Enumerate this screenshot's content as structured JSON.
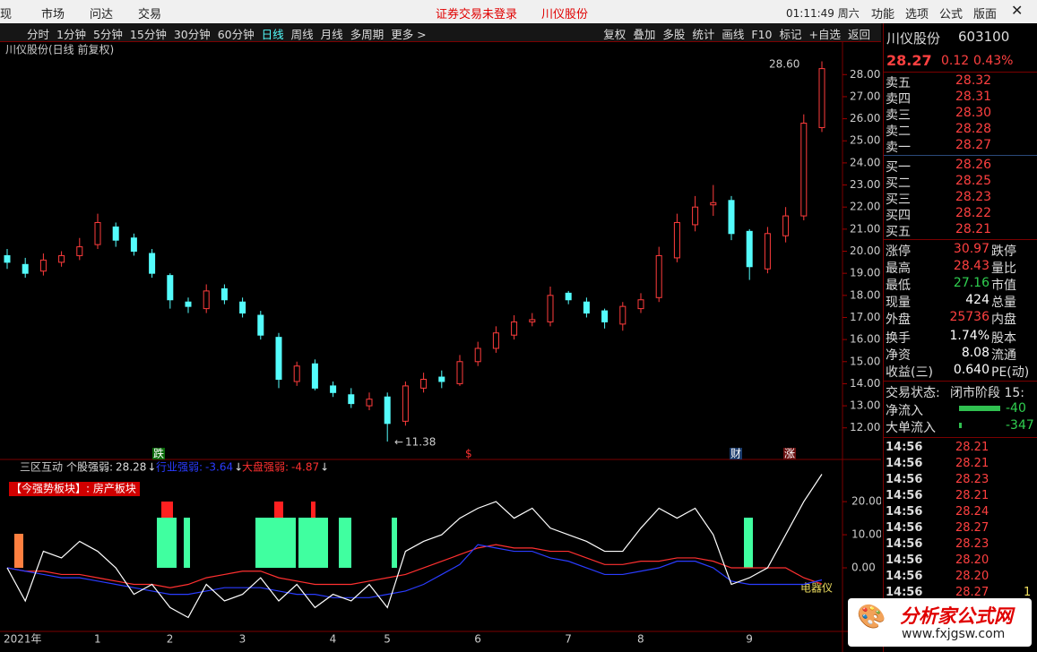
{
  "menu": {
    "items": [
      "现",
      "市场",
      "问达",
      "交易"
    ],
    "notice": "证券交易未登录",
    "stock": "川仪股份",
    "clock": "01:11:49 周六",
    "right_items": [
      "功能",
      "选项",
      "公式",
      "版面"
    ]
  },
  "toolbar": {
    "periods": [
      "分时",
      "1分钟",
      "5分钟",
      "15分钟",
      "30分钟",
      "60分钟",
      "日线",
      "周线",
      "月线",
      "多周期",
      "更多 >"
    ],
    "tools": [
      "复权",
      "叠加",
      "多股",
      "统计",
      "画线",
      "F10",
      "标记",
      "+自选",
      "返回"
    ]
  },
  "chart_data": [
    {
      "type": "candlestick",
      "title": "川仪股份(日线 前复权)",
      "dates": [
        "2021年",
        null,
        null,
        null,
        null,
        "1",
        null,
        null,
        null,
        "2",
        null,
        null,
        null,
        "3",
        null,
        null,
        null,
        null,
        "4",
        null,
        null,
        "5",
        null,
        null,
        null,
        null,
        "6",
        null,
        null,
        null,
        null,
        "7",
        null,
        null,
        null,
        "8",
        null,
        null,
        null,
        null,
        null,
        "9",
        null,
        null,
        null,
        null
      ],
      "open": [
        19.8,
        19.4,
        19.1,
        19.5,
        19.8,
        20.3,
        21.1,
        20.6,
        19.9,
        18.9,
        17.7,
        17.4,
        18.3,
        17.7,
        17.1,
        16.1,
        14.1,
        14.9,
        13.9,
        13.5,
        13.0,
        13.4,
        12.3,
        13.8,
        14.3,
        14.0,
        15.0,
        15.6,
        16.2,
        16.8,
        16.8,
        18.1,
        17.7,
        17.3,
        16.7,
        17.4,
        17.9,
        19.7,
        21.2,
        22.1,
        22.3,
        20.9,
        19.2,
        20.7,
        21.6,
        25.6
      ],
      "high": [
        20.1,
        19.7,
        19.9,
        20.0,
        20.6,
        21.7,
        21.3,
        20.8,
        20.1,
        19.0,
        17.9,
        18.5,
        18.5,
        17.9,
        17.3,
        16.3,
        15.0,
        15.1,
        14.1,
        13.8,
        13.6,
        13.6,
        14.1,
        14.5,
        14.6,
        15.3,
        15.9,
        16.6,
        17.1,
        17.2,
        18.4,
        18.2,
        17.9,
        17.4,
        17.7,
        18.1,
        20.2,
        21.7,
        22.5,
        23.0,
        22.5,
        21.0,
        21.1,
        22.0,
        26.2,
        28.6
      ],
      "low": [
        19.2,
        18.8,
        18.9,
        19.3,
        19.6,
        20.1,
        20.2,
        19.8,
        18.8,
        17.4,
        17.2,
        17.2,
        17.6,
        17.0,
        16.0,
        13.8,
        13.9,
        13.7,
        13.4,
        12.9,
        12.8,
        11.38,
        12.1,
        13.6,
        13.8,
        13.9,
        14.8,
        15.4,
        16.0,
        16.6,
        16.6,
        17.6,
        17.0,
        16.5,
        16.4,
        17.2,
        17.7,
        19.5,
        20.9,
        21.6,
        20.5,
        18.7,
        19.0,
        20.4,
        21.4,
        25.4
      ],
      "close": [
        19.5,
        19.0,
        19.6,
        19.8,
        20.2,
        21.3,
        20.5,
        20.0,
        19.0,
        17.8,
        17.5,
        18.2,
        17.8,
        17.2,
        16.2,
        14.2,
        14.8,
        13.8,
        13.6,
        13.1,
        13.3,
        12.2,
        13.9,
        14.2,
        14.1,
        15.0,
        15.6,
        16.3,
        16.8,
        16.9,
        18.0,
        17.8,
        17.2,
        16.8,
        17.5,
        17.8,
        19.8,
        21.3,
        22.0,
        22.2,
        20.8,
        19.3,
        20.8,
        21.6,
        25.8,
        28.27
      ],
      "ylim": [
        11.3,
        29.35
      ],
      "yticks": [
        {
          "value": 12,
          "label": "12.00"
        },
        {
          "value": 13,
          "label": "13.00"
        },
        {
          "value": 14,
          "label": "14.00"
        },
        {
          "value": 15,
          "label": "15.00"
        },
        {
          "value": 16,
          "label": "16.00"
        },
        {
          "value": 17,
          "label": "17.00"
        },
        {
          "value": 18,
          "label": "18.00"
        },
        {
          "value": 19,
          "label": "19.00"
        },
        {
          "value": 20,
          "label": "20.00"
        },
        {
          "value": 21,
          "label": "21.00"
        },
        {
          "value": 22,
          "label": "22.00"
        },
        {
          "value": 23,
          "label": "23.00"
        },
        {
          "value": 24,
          "label": "24.00"
        },
        {
          "value": 25,
          "label": "25.00"
        },
        {
          "value": 26,
          "label": "26.00"
        },
        {
          "value": 27,
          "label": "27.00"
        },
        {
          "value": 28,
          "label": "28.00"
        }
      ],
      "annotations": [
        "28.60",
        "11.38"
      ],
      "markers": [
        "跌",
        "$",
        "财",
        "涨"
      ],
      "up_color": "#ff3c3c",
      "down_color": "#54fcfc"
    },
    {
      "type": "line",
      "title": "三区互动",
      "subtitle": "【今强势板块】: 房产板块",
      "series": [
        {
          "name": "个股强弱:",
          "color": "#ffffff",
          "values": [
            0,
            -10,
            5,
            3,
            8,
            5,
            0,
            -8,
            -5,
            -12,
            -15,
            -5,
            -10,
            -8,
            -3,
            -10,
            -5,
            -12,
            -8,
            -10,
            -5,
            -12,
            5,
            8,
            10,
            15,
            18,
            20,
            15,
            18,
            12,
            10,
            8,
            5,
            5,
            12,
            18,
            15,
            18,
            10,
            -5,
            -3,
            0,
            10,
            20,
            28.28
          ]
        },
        {
          "name": "行业强弱:",
          "color": "#2a3cff",
          "values": [
            0,
            -1,
            -2,
            -3,
            -3,
            -4,
            -5,
            -6,
            -7,
            -8,
            -8,
            -7,
            -6,
            -6,
            -6,
            -7,
            -8,
            -8,
            -9,
            -9,
            -9,
            -8,
            -7,
            -5,
            -2,
            1,
            7,
            6,
            5,
            5,
            3,
            2,
            0,
            -2,
            -2,
            -1,
            0,
            2,
            2,
            0,
            -4,
            -5,
            -5,
            -5,
            -5,
            -3.64
          ]
        },
        {
          "name": "大盘强弱:",
          "color": "#ff3030",
          "values": [
            0,
            -1,
            -1,
            -2,
            -2,
            -3,
            -4,
            -5,
            -5,
            -6,
            -5,
            -3,
            -2,
            -1,
            -1,
            -3,
            -4,
            -5,
            -5,
            -5,
            -4,
            -3,
            -2,
            0,
            2,
            4,
            6,
            7,
            6,
            6,
            5,
            5,
            3,
            1,
            1,
            2,
            2,
            3,
            3,
            2,
            0,
            0,
            0,
            0,
            -3,
            -4.87
          ]
        }
      ],
      "ylim": [
        -19.2,
        32.2
      ],
      "yticks": [
        {
          "value": 0,
          "label": "0.00"
        },
        {
          "value": 10,
          "label": "10.00"
        },
        {
          "value": 20,
          "label": "20.00"
        }
      ],
      "annotation": "电器仪"
    }
  ],
  "quote": {
    "name": "川仪股份",
    "code": "603100",
    "price": "28.27",
    "change": "0.12",
    "pct": "0.43%",
    "asks": [
      {
        "label": "卖五",
        "price": "28.32"
      },
      {
        "label": "卖四",
        "price": "28.31"
      },
      {
        "label": "卖三",
        "price": "28.30"
      },
      {
        "label": "卖二",
        "price": "28.28"
      },
      {
        "label": "卖一",
        "price": "28.27"
      }
    ],
    "bids": [
      {
        "label": "买一",
        "price": "28.26"
      },
      {
        "label": "买二",
        "price": "28.25"
      },
      {
        "label": "买三",
        "price": "28.23"
      },
      {
        "label": "买四",
        "price": "28.22"
      },
      {
        "label": "买五",
        "price": "28.21"
      }
    ],
    "stats": [
      {
        "label": "涨停",
        "value": "30.97",
        "label2": "跌停",
        "color": "#ff4040"
      },
      {
        "label": "最高",
        "value": "28.43",
        "label2": "量比",
        "color": "#ff4040"
      },
      {
        "label": "最低",
        "value": "27.16",
        "label2": "市值",
        "color": "#30d050"
      },
      {
        "label": "现量",
        "value": "424",
        "label2": "总量",
        "color": "#ffffff"
      },
      {
        "label": "外盘",
        "value": "25736",
        "label2": "内盘",
        "color": "#ff4040"
      },
      {
        "label": "换手",
        "value": "1.74%",
        "label2": "股本",
        "color": "#ffffff"
      },
      {
        "label": "净资",
        "value": "8.08",
        "label2": "流通",
        "color": "#ffffff"
      },
      {
        "label": "收益(三)",
        "value": "0.640",
        "label2": "PE(动)",
        "color": "#ffffff"
      }
    ],
    "status_label": "交易状态:",
    "status": "闭市阶段 15:",
    "flows": [
      {
        "label": "净流入",
        "value": "-40"
      },
      {
        "label": "大单流入",
        "value": "-347"
      }
    ],
    "trades": [
      {
        "time": "14:56",
        "price": "28.21"
      },
      {
        "time": "14:56",
        "price": "28.21"
      },
      {
        "time": "14:56",
        "price": "28.23"
      },
      {
        "time": "14:56",
        "price": "28.21"
      },
      {
        "time": "14:56",
        "price": "28.24"
      },
      {
        "time": "14:56",
        "price": "28.27"
      },
      {
        "time": "14:56",
        "price": "28.23"
      },
      {
        "time": "14:56",
        "price": "28.20"
      },
      {
        "time": "14:56",
        "price": "28.20"
      },
      {
        "time": "14:56",
        "price": "28.27",
        "vol": "1"
      }
    ]
  },
  "watermark": {
    "title": "分析家公式网",
    "url": "www.fxjgsw.com"
  }
}
